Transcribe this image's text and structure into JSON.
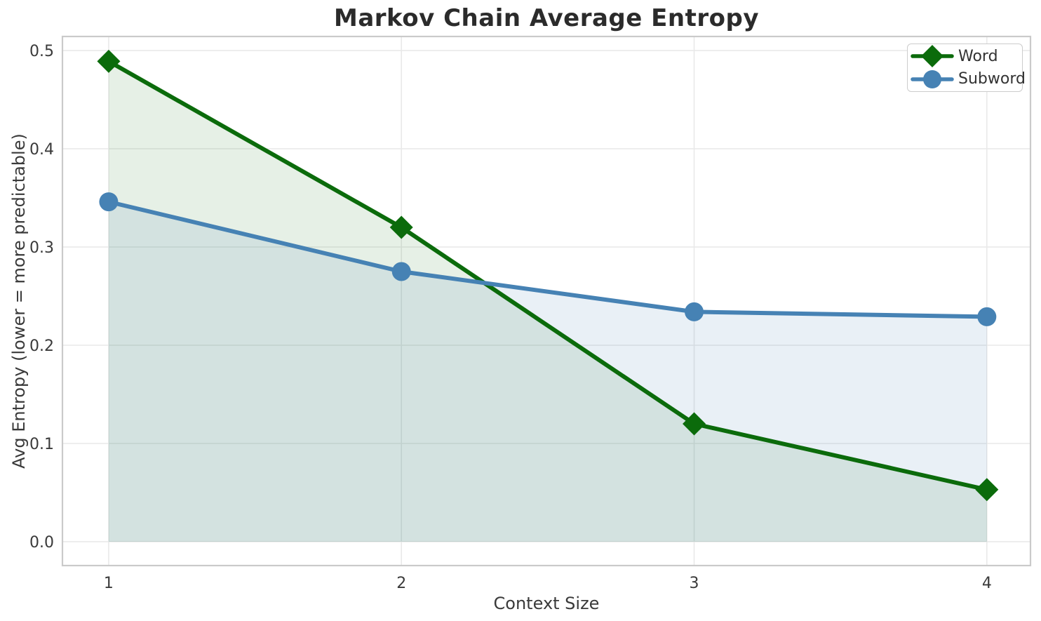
{
  "chart_data": {
    "type": "line",
    "title": "Markov Chain Average Entropy",
    "xlabel": "Context Size",
    "ylabel": "Avg Entropy (lower = more predictable)",
    "x": [
      1,
      2,
      3,
      4
    ],
    "xticks": [
      1,
      2,
      3,
      4
    ],
    "yticks": [
      0.0,
      0.1,
      0.2,
      0.3,
      0.4,
      0.5
    ],
    "xlim": [
      0.842,
      4.149
    ],
    "ylim": [
      -0.0243,
      0.5143
    ],
    "grid": true,
    "legend_position": "upper right",
    "fill_to_zero": true,
    "series": [
      {
        "name": "Word",
        "color": "#0b6b0b",
        "marker": "diamond",
        "fill_alpha": 0.1,
        "values": [
          0.489,
          0.32,
          0.12,
          0.053
        ]
      },
      {
        "name": "Subword",
        "color": "#4682b4",
        "marker": "circle",
        "fill_alpha": 0.12,
        "values": [
          0.346,
          0.275,
          0.234,
          0.229
        ]
      }
    ]
  },
  "colors": {
    "background": "#ffffff",
    "title": "#2b2b2b",
    "tick_label": "#3a3a3a",
    "grid": "#e9e9e9",
    "spine": "#cacaca",
    "legend_border": "#cccccc",
    "legend_text": "#333333"
  }
}
